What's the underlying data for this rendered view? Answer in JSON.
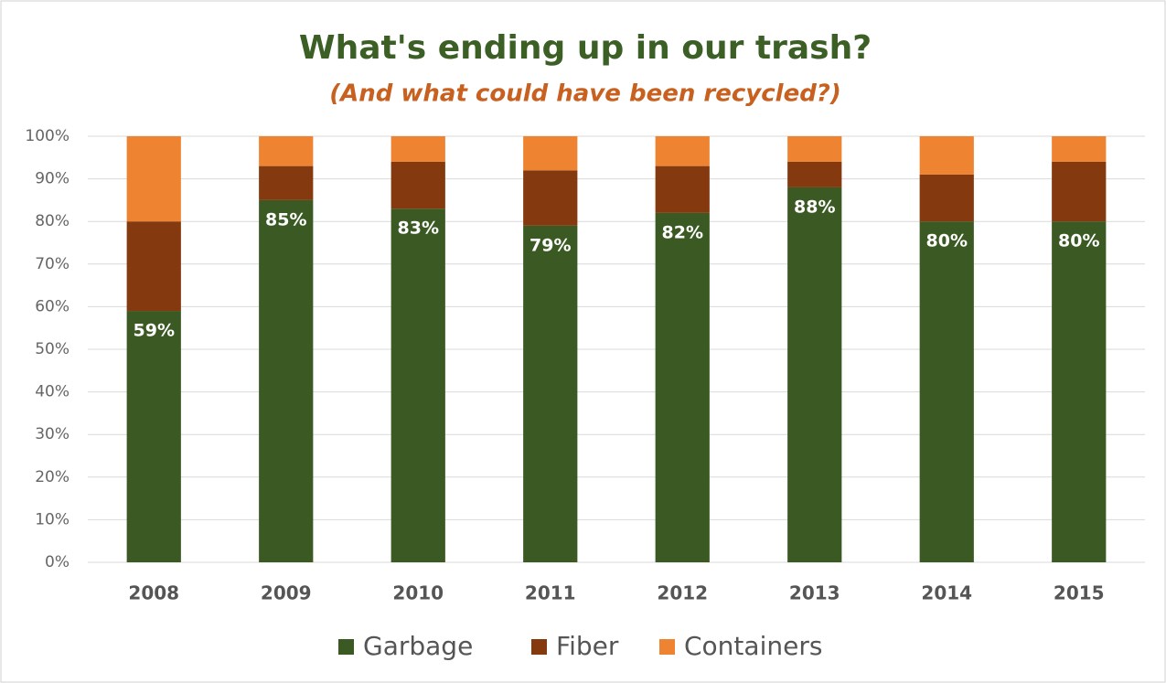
{
  "chart_data": {
    "type": "stacked-bar",
    "title": "What's ending up in our trash?",
    "subtitle": "(And what could have been recycled?)",
    "categories": [
      "2008",
      "2009",
      "2010",
      "2011",
      "2012",
      "2013",
      "2014",
      "2015"
    ],
    "series": [
      {
        "name": "Garbage",
        "color": "#3b5a23",
        "values": [
          59,
          85,
          83,
          79,
          82,
          88,
          80,
          80
        ],
        "value_labels": [
          "59%",
          "85%",
          "83%",
          "79%",
          "82%",
          "88%",
          "80%",
          "80%"
        ]
      },
      {
        "name": "Fiber",
        "color": "#84390e",
        "values": [
          21,
          8,
          11,
          13,
          11,
          6,
          11,
          14
        ]
      },
      {
        "name": "Containers",
        "color": "#ee8432",
        "values": [
          20,
          7,
          6,
          8,
          7,
          6,
          9,
          6
        ]
      }
    ],
    "ylim": [
      0,
      100
    ],
    "yticks": [
      {
        "value": 0,
        "label": "0%"
      },
      {
        "value": 10,
        "label": "10%"
      },
      {
        "value": 20,
        "label": "20%"
      },
      {
        "value": 30,
        "label": "30%"
      },
      {
        "value": 40,
        "label": "40%"
      },
      {
        "value": 50,
        "label": "50%"
      },
      {
        "value": 60,
        "label": "60%"
      },
      {
        "value": 70,
        "label": "70%"
      },
      {
        "value": 80,
        "label": "80%"
      },
      {
        "value": 90,
        "label": "90%"
      },
      {
        "value": 100,
        "label": "100%"
      }
    ],
    "grid": true,
    "legend": "bottom"
  }
}
